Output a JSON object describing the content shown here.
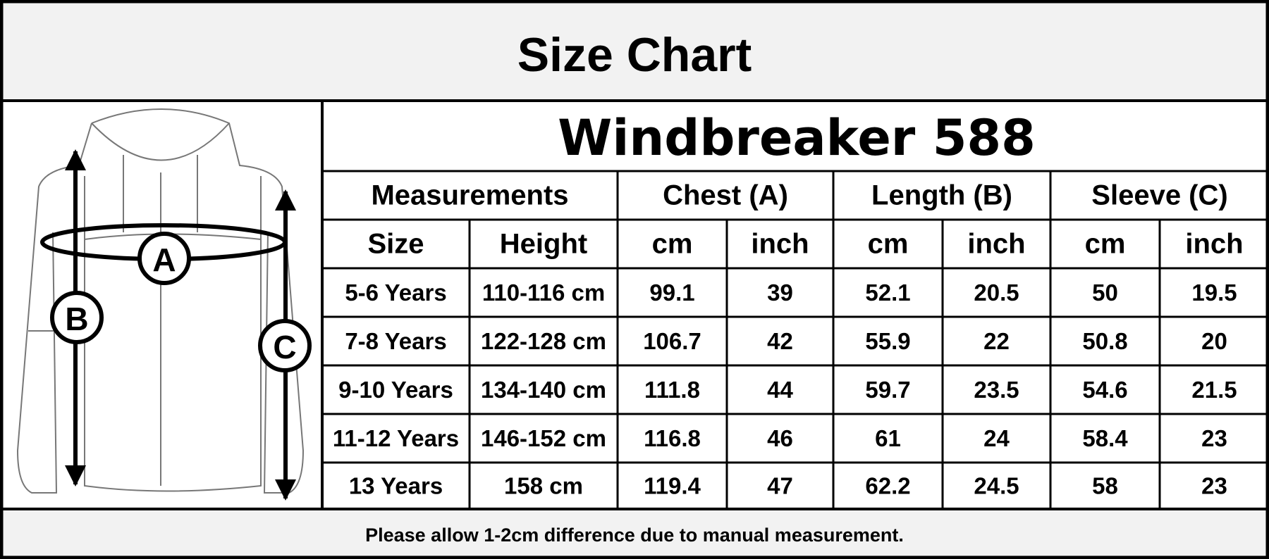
{
  "header": {
    "title": "Size Chart"
  },
  "product": "Windbreaker 588",
  "diagram": {
    "labels": [
      "A",
      "B",
      "C"
    ]
  },
  "table": {
    "groups": [
      "Measurements",
      "Chest (A)",
      "Length (B)",
      "Sleeve (C)"
    ],
    "columns": [
      "Size",
      "Height",
      "cm",
      "inch",
      "cm",
      "inch",
      "cm",
      "inch"
    ],
    "rows": [
      [
        "5-6 Years",
        "110-116 cm",
        99.1,
        39,
        52.1,
        20.5,
        50,
        19.5
      ],
      [
        "7-8 Years",
        "122-128 cm",
        106.7,
        42,
        55.9,
        22,
        50.8,
        20
      ],
      [
        "9-10 Years",
        "134-140 cm",
        111.8,
        44,
        59.7,
        23.5,
        54.6,
        21.5
      ],
      [
        "11-12 Years",
        "146-152 cm",
        116.8,
        46,
        61,
        24,
        58.4,
        23
      ],
      [
        "13 Years",
        "158 cm",
        119.4,
        47,
        62.2,
        24.5,
        58,
        23
      ]
    ]
  },
  "footer": "Please allow 1-2cm difference due to manual measurement."
}
